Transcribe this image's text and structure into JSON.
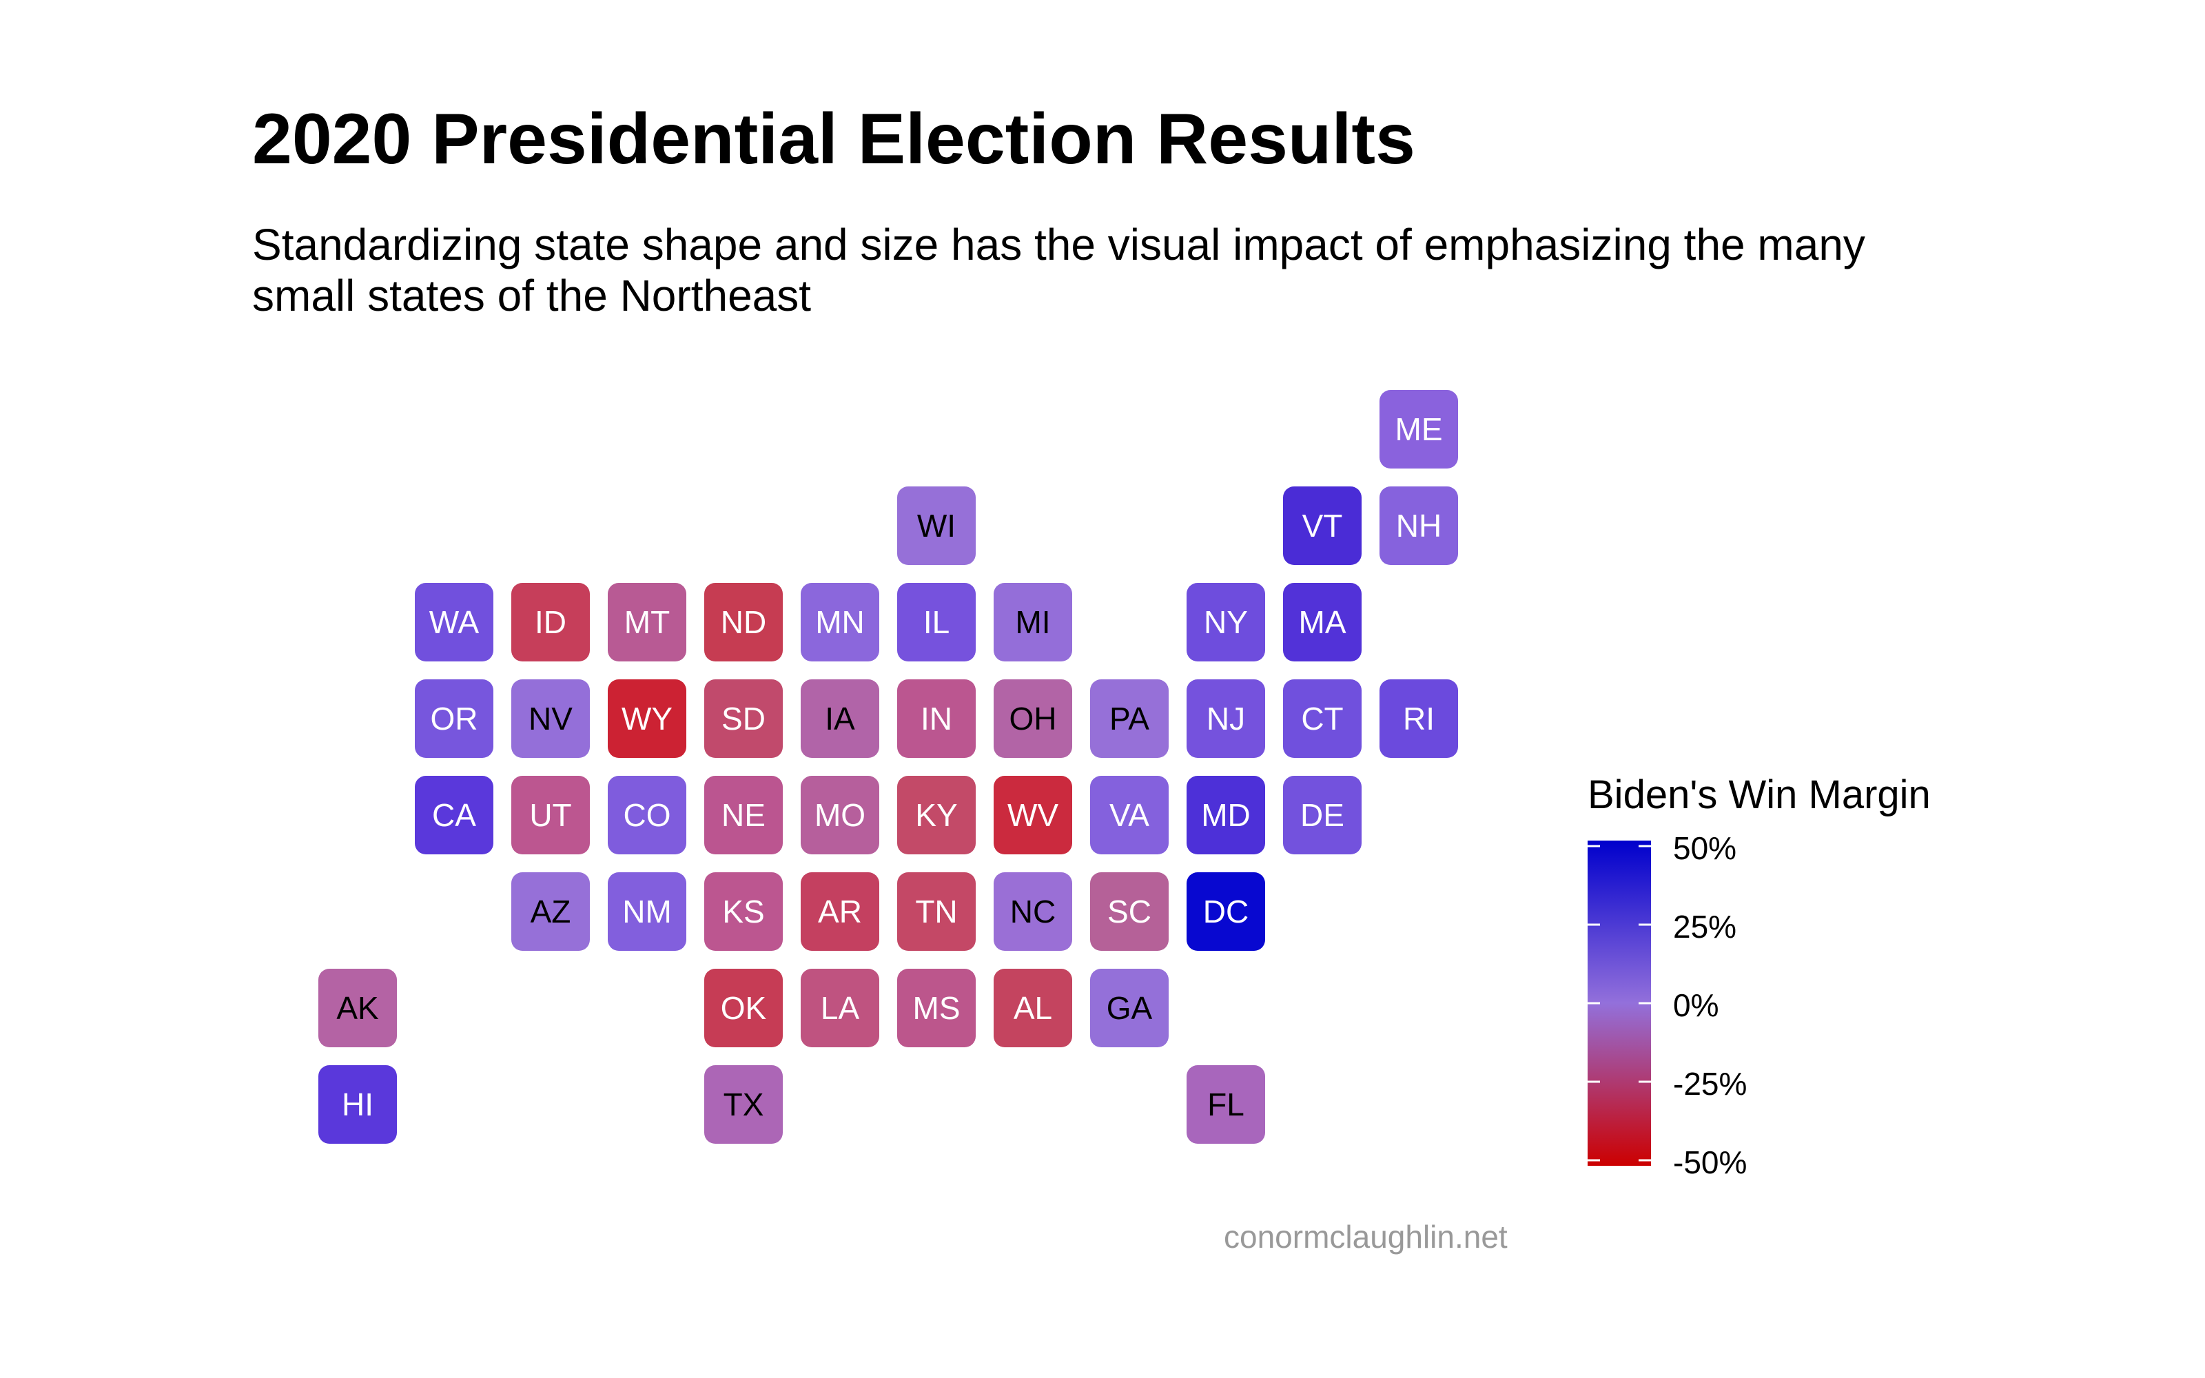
{
  "title": "2020 Presidential Election Results",
  "subtitle": "Standardizing state shape and size has the visual impact of emphasizing the many small states of the Northeast",
  "legend": {
    "title": "Biden's Win Margin",
    "labels": [
      "50%",
      "25%",
      "0%",
      "-25%",
      "-50%"
    ],
    "color_high": "#0000cc",
    "color_mid": "#9370db",
    "color_low": "#cc0000"
  },
  "caption": "conormclaughlin.net",
  "states": [
    {
      "abbr": "ME",
      "col": 11,
      "row": 0,
      "color": "#8a62dd",
      "text": "light"
    },
    {
      "abbr": "WI",
      "col": 6,
      "row": 1,
      "color": "#9670d8",
      "text": "dark"
    },
    {
      "abbr": "VT",
      "col": 10,
      "row": 1,
      "color": "#4a2cd6",
      "text": "light"
    },
    {
      "abbr": "NH",
      "col": 11,
      "row": 1,
      "color": "#8662dd",
      "text": "light"
    },
    {
      "abbr": "WA",
      "col": 1,
      "row": 2,
      "color": "#7150dd",
      "text": "light"
    },
    {
      "abbr": "ID",
      "col": 2,
      "row": 2,
      "color": "#c63e5a",
      "text": "light"
    },
    {
      "abbr": "MT",
      "col": 3,
      "row": 2,
      "color": "#b85a94",
      "text": "light"
    },
    {
      "abbr": "ND",
      "col": 4,
      "row": 2,
      "color": "#c63c52",
      "text": "light"
    },
    {
      "abbr": "MN",
      "col": 5,
      "row": 2,
      "color": "#8b67dc",
      "text": "light"
    },
    {
      "abbr": "IL",
      "col": 6,
      "row": 2,
      "color": "#7652dd",
      "text": "light"
    },
    {
      "abbr": "MI",
      "col": 7,
      "row": 2,
      "color": "#946ed9",
      "text": "dark"
    },
    {
      "abbr": "NY",
      "col": 9,
      "row": 2,
      "color": "#6e4ddd",
      "text": "light"
    },
    {
      "abbr": "MA",
      "col": 10,
      "row": 2,
      "color": "#5232d8",
      "text": "light"
    },
    {
      "abbr": "OR",
      "col": 1,
      "row": 3,
      "color": "#7756dd",
      "text": "light"
    },
    {
      "abbr": "NV",
      "col": 2,
      "row": 3,
      "color": "#946fd9",
      "text": "dark"
    },
    {
      "abbr": "WY",
      "col": 3,
      "row": 3,
      "color": "#cc2233",
      "text": "light"
    },
    {
      "abbr": "SD",
      "col": 4,
      "row": 3,
      "color": "#c14a6c",
      "text": "light"
    },
    {
      "abbr": "IA",
      "col": 5,
      "row": 3,
      "color": "#b164a8",
      "text": "dark"
    },
    {
      "abbr": "IN",
      "col": 6,
      "row": 3,
      "color": "#bb5690",
      "text": "light"
    },
    {
      "abbr": "OH",
      "col": 7,
      "row": 3,
      "color": "#b264a6",
      "text": "dark"
    },
    {
      "abbr": "PA",
      "col": 8,
      "row": 3,
      "color": "#9670d8",
      "text": "dark"
    },
    {
      "abbr": "NJ",
      "col": 9,
      "row": 3,
      "color": "#7552dd",
      "text": "light"
    },
    {
      "abbr": "CT",
      "col": 10,
      "row": 3,
      "color": "#7050dd",
      "text": "light"
    },
    {
      "abbr": "RI",
      "col": 11,
      "row": 3,
      "color": "#6b4add",
      "text": "light"
    },
    {
      "abbr": "CA",
      "col": 1,
      "row": 4,
      "color": "#5a38db",
      "text": "light"
    },
    {
      "abbr": "UT",
      "col": 2,
      "row": 4,
      "color": "#bc5690",
      "text": "light"
    },
    {
      "abbr": "CO",
      "col": 3,
      "row": 4,
      "color": "#7f5cdd",
      "text": "light"
    },
    {
      "abbr": "NE",
      "col": 4,
      "row": 4,
      "color": "#bb5590",
      "text": "light"
    },
    {
      "abbr": "MO",
      "col": 5,
      "row": 4,
      "color": "#b65f9c",
      "text": "light"
    },
    {
      "abbr": "KY",
      "col": 6,
      "row": 4,
      "color": "#c34a68",
      "text": "light"
    },
    {
      "abbr": "WV",
      "col": 7,
      "row": 4,
      "color": "#cb2a3e",
      "text": "light"
    },
    {
      "abbr": "VA",
      "col": 8,
      "row": 4,
      "color": "#8461dd",
      "text": "light"
    },
    {
      "abbr": "MD",
      "col": 9,
      "row": 4,
      "color": "#4d30d8",
      "text": "light"
    },
    {
      "abbr": "DE",
      "col": 10,
      "row": 4,
      "color": "#7352dd",
      "text": "light"
    },
    {
      "abbr": "AZ",
      "col": 2,
      "row": 5,
      "color": "#9670d8",
      "text": "dark"
    },
    {
      "abbr": "NM",
      "col": 3,
      "row": 5,
      "color": "#825fdd",
      "text": "light"
    },
    {
      "abbr": "KS",
      "col": 4,
      "row": 5,
      "color": "#bc5690",
      "text": "light"
    },
    {
      "abbr": "AR",
      "col": 5,
      "row": 5,
      "color": "#c44060",
      "text": "light"
    },
    {
      "abbr": "TN",
      "col": 6,
      "row": 5,
      "color": "#c44866",
      "text": "light"
    },
    {
      "abbr": "NC",
      "col": 7,
      "row": 5,
      "color": "#9a6fd6",
      "text": "dark"
    },
    {
      "abbr": "SC",
      "col": 8,
      "row": 5,
      "color": "#b56198",
      "text": "light"
    },
    {
      "abbr": "DC",
      "col": 9,
      "row": 5,
      "color": "#0808d0",
      "text": "light"
    },
    {
      "abbr": "AK",
      "col": 0,
      "row": 6,
      "color": "#b463a4",
      "text": "dark"
    },
    {
      "abbr": "OK",
      "col": 4,
      "row": 6,
      "color": "#c63c55",
      "text": "light"
    },
    {
      "abbr": "LA",
      "col": 5,
      "row": 6,
      "color": "#bf5380",
      "text": "light"
    },
    {
      "abbr": "MS",
      "col": 6,
      "row": 6,
      "color": "#bc568c",
      "text": "light"
    },
    {
      "abbr": "AL",
      "col": 7,
      "row": 6,
      "color": "#c4445f",
      "text": "light"
    },
    {
      "abbr": "GA",
      "col": 8,
      "row": 6,
      "color": "#9470d9",
      "text": "dark"
    },
    {
      "abbr": "HI",
      "col": 0,
      "row": 7,
      "color": "#5a38db",
      "text": "light"
    },
    {
      "abbr": "TX",
      "col": 4,
      "row": 7,
      "color": "#ac66b6",
      "text": "dark"
    },
    {
      "abbr": "FL",
      "col": 9,
      "row": 7,
      "color": "#a866bc",
      "text": "dark"
    }
  ]
}
